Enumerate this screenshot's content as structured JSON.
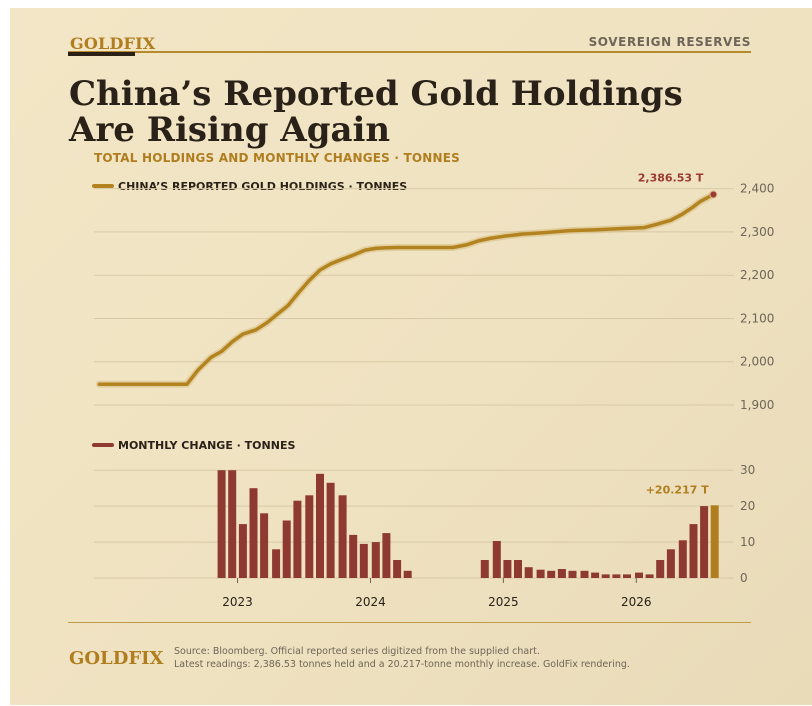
{
  "brand": "GOLDFIX",
  "section": "SOVEREIGN RESERVES",
  "headline": {
    "line1": "China’s Reported Gold Holdings",
    "line2": "Are Rising Again"
  },
  "subtitle": "TOTAL HOLDINGS AND MONTHLY CHANGES  ·  TONNES",
  "colors": {
    "gold": "#b07d1f",
    "gold_line": "#b3831f",
    "red_bar": "#8e3a32",
    "red_label": "#9b3a30",
    "ink": "#2a2118",
    "grid": "#d8c9a6",
    "muted": "#6f6558"
  },
  "chart_data": [
    {
      "type": "line",
      "legend": "CHINA’S REPORTED GOLD HOLDINGS  ·  TONNES",
      "y_ticks": [
        1900,
        2000,
        2100,
        2200,
        2300,
        2400
      ],
      "y_tick_labels": [
        "1,900",
        "2,000",
        "2,100",
        "2,200",
        "2,300",
        "2,400"
      ],
      "ylim": [
        1870,
        2420
      ],
      "xlim": [
        2021.92,
        2026.72
      ],
      "grid": true,
      "end_label": "2,386.53 T",
      "series": [
        {
          "x": [
            2021.96,
            2022.1,
            2022.3,
            2022.5,
            2022.62,
            2022.7,
            2022.8,
            2022.88,
            2022.96,
            2023.04,
            2023.14,
            2023.22,
            2023.3,
            2023.38,
            2023.46,
            2023.54,
            2023.62,
            2023.7,
            2023.78,
            2023.86,
            2023.96,
            2024.04,
            2024.1,
            2024.2,
            2024.3,
            2024.46,
            2024.62,
            2024.72,
            2024.82,
            2024.9,
            2025.0,
            2025.14,
            2025.3,
            2025.5,
            2025.7,
            2025.9,
            2026.06,
            2026.16,
            2026.26,
            2026.34,
            2026.42,
            2026.48,
            2026.58
          ],
          "y": [
            1948,
            1948,
            1948,
            1948,
            1948,
            1980,
            2010,
            2024,
            2046,
            2064,
            2074,
            2090,
            2110,
            2130,
            2160,
            2188,
            2212,
            2226,
            2236,
            2245,
            2258,
            2262,
            2263,
            2264,
            2264,
            2264,
            2264,
            2270,
            2280,
            2285,
            2290,
            2295,
            2298,
            2303,
            2305,
            2308,
            2310,
            2318,
            2327,
            2340,
            2356,
            2370,
            2386.53
          ]
        }
      ]
    },
    {
      "type": "bar",
      "legend": "MONTHLY CHANGE  ·  TONNES",
      "y_ticks": [
        0,
        10,
        20,
        30
      ],
      "y_tick_labels": [
        "0",
        "10",
        "20",
        "30"
      ],
      "ylim": [
        0,
        32
      ],
      "xlim": [
        2021.92,
        2026.72
      ],
      "x_ticks": [
        2023,
        2024,
        2025,
        2026
      ],
      "x_tick_labels": [
        "2023",
        "2024",
        "2025",
        "2026"
      ],
      "grid": true,
      "end_label": "+20.217 T",
      "bar_width_years": 0.06,
      "x": [
        2022.88,
        2022.96,
        2023.04,
        2023.12,
        2023.2,
        2023.29,
        2023.37,
        2023.45,
        2023.54,
        2023.62,
        2023.7,
        2023.79,
        2023.87,
        2023.95,
        2024.04,
        2024.12,
        2024.2,
        2024.28,
        2024.86,
        2024.95,
        2025.03,
        2025.11,
        2025.19,
        2025.28,
        2025.36,
        2025.44,
        2025.52,
        2025.61,
        2025.69,
        2025.77,
        2025.85,
        2025.93,
        2026.02,
        2026.1,
        2026.18,
        2026.26,
        2026.35,
        2026.43,
        2026.51,
        2026.59
      ],
      "values": [
        30,
        30,
        15,
        25,
        18,
        8,
        16,
        21.5,
        23,
        29,
        26.5,
        23,
        12,
        9.5,
        10,
        12.5,
        5,
        2,
        5,
        10.3,
        5,
        5,
        3,
        2.3,
        2,
        2.5,
        2,
        2,
        1.5,
        1,
        1,
        1,
        1.5,
        1,
        5,
        8,
        10.5,
        15,
        20,
        20.217
      ]
    }
  ],
  "source": {
    "line1": "Source: Bloomberg. Official reported series digitized from the supplied chart.",
    "line2": "Latest readings: 2,386.53 tonnes held and a 20.217-tonne monthly increase. GoldFix rendering."
  }
}
